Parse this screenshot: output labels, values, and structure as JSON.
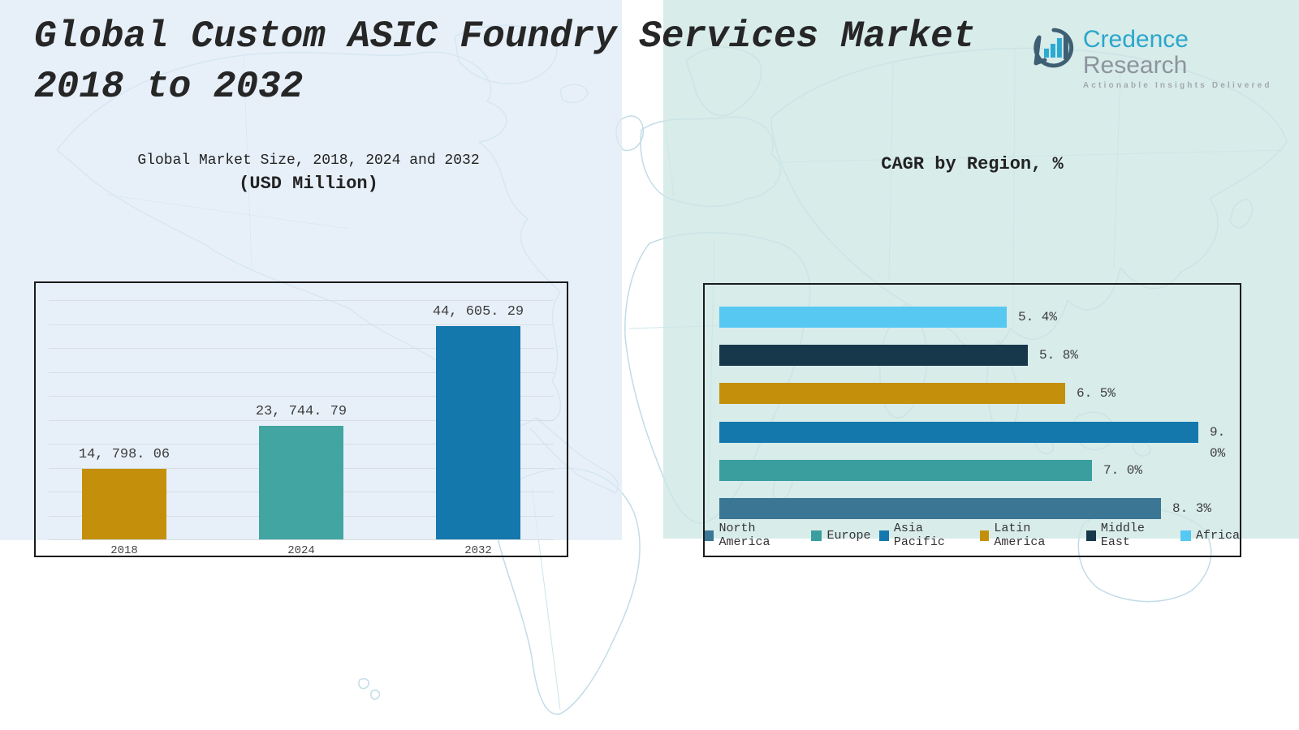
{
  "header": {
    "title_line1": "Global Custom ASIC Foundry Services Market",
    "title_line2": "2018 to 2032"
  },
  "logo": {
    "brand_primary": "Credence",
    "brand_secondary": "Research",
    "tagline": "Actionable Insights Delivered",
    "icon": "bar-chart-speech-bubble-icon",
    "colors": {
      "brand_primary": "#2ba6cb",
      "brand_secondary": "#8d949c",
      "icon_ring": "#3e5f73",
      "icon_bars": "#2aa9d2"
    }
  },
  "chart_data": [
    {
      "type": "bar",
      "title": "Global Market Size, 2018, 2024 and 2032",
      "subtitle": "(USD Million)",
      "categories": [
        "2018",
        "2024",
        "2032"
      ],
      "values": [
        14798.06,
        23744.79,
        44605.29
      ],
      "value_labels": [
        "14, 798. 06",
        "23, 744. 79",
        "44, 605. 29"
      ],
      "bar_colors": [
        "#c4900c",
        "#43a5a1",
        "#1478ad"
      ],
      "xlabel": "",
      "ylabel": "",
      "ylim": [
        0,
        50000
      ],
      "grid": true,
      "legend": "none"
    },
    {
      "type": "bar-horizontal",
      "title": "CAGR by Region, %",
      "categories": [
        "Africa",
        "Middle East",
        "Latin America",
        "Asia Pacific",
        "Europe",
        "North America"
      ],
      "values": [
        5.4,
        5.8,
        6.5,
        9.0,
        7.0,
        8.3
      ],
      "value_labels": [
        "5. 4%",
        "5. 8%",
        "6. 5%",
        "9. 0%",
        "7. 0%",
        "8. 3%"
      ],
      "bar_colors": [
        "#56c8f2",
        "#17384a",
        "#c4900c",
        "#1478ad",
        "#3a9e9e",
        "#3b7795"
      ],
      "xlim": [
        0,
        9.8
      ],
      "grid": false,
      "legend_position": "bottom",
      "legend": [
        {
          "label": "North America",
          "color": "#3b7795"
        },
        {
          "label": "Europe",
          "color": "#3a9e9e"
        },
        {
          "label": "Asia Pacific",
          "color": "#1478ad"
        },
        {
          "label": "Latin America",
          "color": "#c4900c"
        },
        {
          "label": "Middle East",
          "color": "#17384a"
        },
        {
          "label": "Africa",
          "color": "#56c8f2"
        }
      ]
    }
  ]
}
